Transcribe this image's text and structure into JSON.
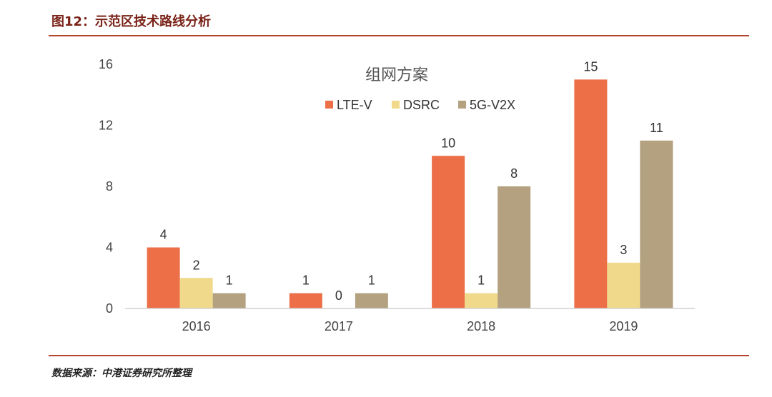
{
  "header": {
    "figure_title": "图12：示范区技术路线分析"
  },
  "footer": {
    "source": "数据来源：中港证券研究所整理"
  },
  "colors": {
    "LTE-V": "#ec6f48",
    "DSRC": "#f0d98a",
    "5G-V2X": "#b3a17f",
    "rule": "#b3462f"
  },
  "chart_data": {
    "type": "bar",
    "title": "组网方案",
    "categories": [
      "2016",
      "2017",
      "2018",
      "2019"
    ],
    "series": [
      {
        "name": "LTE-V",
        "values": [
          4,
          1,
          10,
          15
        ]
      },
      {
        "name": "DSRC",
        "values": [
          2,
          0,
          1,
          3
        ]
      },
      {
        "name": "5G-V2X",
        "values": [
          1,
          1,
          8,
          11
        ]
      }
    ],
    "ylim": [
      0,
      16
    ],
    "yticks": [
      0,
      4,
      8,
      12,
      16
    ],
    "legend_position": "top-center",
    "xlabel": "",
    "ylabel": ""
  }
}
